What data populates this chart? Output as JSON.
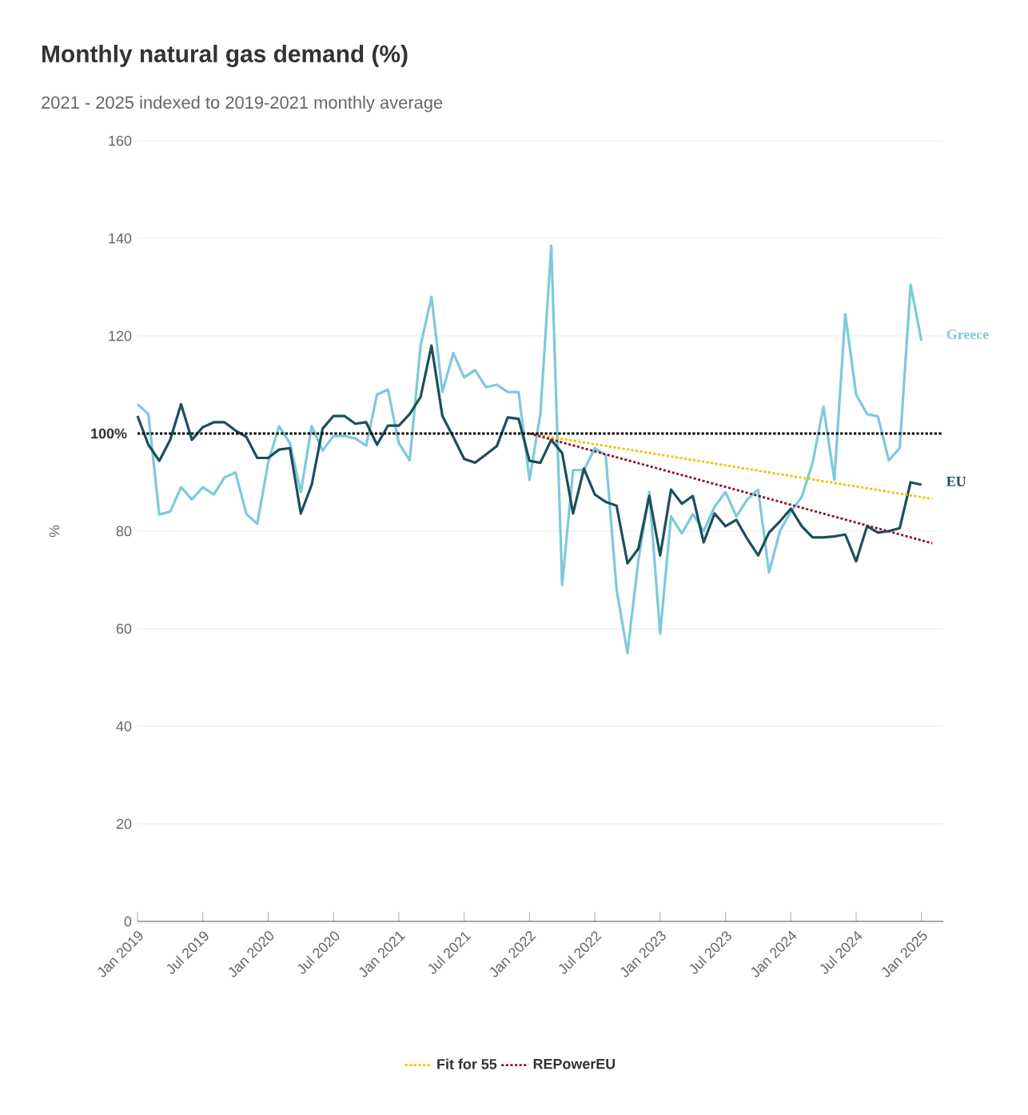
{
  "chart_data": {
    "type": "line",
    "title": "Monthly natural gas demand (%)",
    "subtitle": "2021 - 2025 indexed to 2019-2021 monthly average",
    "ylabel": "%",
    "x": [
      "2019-01",
      "2019-02",
      "2019-03",
      "2019-04",
      "2019-05",
      "2019-06",
      "2019-07",
      "2019-08",
      "2019-09",
      "2019-10",
      "2019-11",
      "2019-12",
      "2020-01",
      "2020-02",
      "2020-03",
      "2020-04",
      "2020-05",
      "2020-06",
      "2020-07",
      "2020-08",
      "2020-09",
      "2020-10",
      "2020-11",
      "2020-12",
      "2021-01",
      "2021-02",
      "2021-03",
      "2021-04",
      "2021-05",
      "2021-06",
      "2021-07",
      "2021-08",
      "2021-09",
      "2021-10",
      "2021-11",
      "2021-12",
      "2022-01",
      "2022-02",
      "2022-03",
      "2022-04",
      "2022-05",
      "2022-06",
      "2022-07",
      "2022-08",
      "2022-09",
      "2022-10",
      "2022-11",
      "2022-12",
      "2023-01",
      "2023-02",
      "2023-03",
      "2023-04",
      "2023-05",
      "2023-06",
      "2023-07",
      "2023-08",
      "2023-09",
      "2023-10",
      "2023-11",
      "2023-12",
      "2024-01",
      "2024-02",
      "2024-03",
      "2024-04",
      "2024-05",
      "2024-06",
      "2024-07",
      "2024-08",
      "2024-09",
      "2024-10",
      "2024-11",
      "2024-12",
      "2025-01"
    ],
    "series": [
      {
        "name": "Greece",
        "color": "#7ccadb",
        "line_style": "solid",
        "values": [
          106,
          104,
          83.4,
          84,
          89,
          86.5,
          89,
          87.5,
          91,
          92,
          83.5,
          81.5,
          94,
          101.5,
          98,
          88,
          101.5,
          96.5,
          99.5,
          99.5,
          99,
          97.5,
          108,
          109,
          98,
          94.5,
          118,
          128,
          108.5,
          116.5,
          111.5,
          113,
          109.5,
          110,
          108.5,
          108.5,
          90.5,
          104,
          138.5,
          69,
          92.5,
          92.5,
          97,
          95.5,
          68,
          55,
          74,
          88,
          59,
          83,
          79.5,
          83.5,
          80,
          85,
          88,
          83,
          86.5,
          88.5,
          71.5,
          80,
          84,
          87,
          94,
          105.5,
          90.5,
          124.5,
          108,
          104,
          103.5,
          94.5,
          97,
          130.5,
          119
        ]
      },
      {
        "name": "EU",
        "color": "#1b4f5c",
        "line_style": "solid",
        "values": [
          103.6,
          97.7,
          94.4,
          98.7,
          106,
          98.7,
          101.3,
          102.3,
          102.3,
          100.6,
          99.3,
          95,
          95,
          96.7,
          97,
          83.6,
          89.5,
          101,
          103.6,
          103.6,
          102,
          102.3,
          97.7,
          101.6,
          101.6,
          104,
          107.5,
          118,
          103.6,
          99.3,
          94.8,
          94,
          95.7,
          97.4,
          103.3,
          103,
          94.4,
          94,
          98.7,
          96,
          83.6,
          92.8,
          87.5,
          86,
          85.2,
          73.4,
          76.4,
          87.2,
          75,
          88.5,
          85.6,
          87.2,
          77.7,
          83.6,
          81,
          82.3,
          78.4,
          75,
          79.7,
          82,
          84.6,
          81,
          78.7,
          78.7,
          78.9,
          79.3,
          73.8,
          81,
          79.7,
          80,
          80.6,
          90,
          89.5
        ]
      },
      {
        "name": "Fit for 55",
        "color": "#f2c200",
        "line_style": "dotted",
        "x": [
          "2022-01",
          "2025-02"
        ],
        "values": [
          100,
          86.6
        ]
      },
      {
        "name": "REPowerEU",
        "color": "#8b1a3a",
        "line_style": "dotted",
        "x": [
          "2022-01",
          "2025-02"
        ],
        "values": [
          100,
          77.5
        ]
      }
    ],
    "xlim": [
      "2019-01",
      "2025-03"
    ],
    "xticks": [
      {
        "value": "2019-01",
        "label": "Jan 2019"
      },
      {
        "value": "2019-07",
        "label": "Jul 2019"
      },
      {
        "value": "2020-01",
        "label": "Jan 2020"
      },
      {
        "value": "2020-07",
        "label": "Jul 2020"
      },
      {
        "value": "2021-01",
        "label": "Jan 2021"
      },
      {
        "value": "2021-07",
        "label": "Jul 2021"
      },
      {
        "value": "2022-01",
        "label": "Jan 2022"
      },
      {
        "value": "2022-07",
        "label": "Jul 2022"
      },
      {
        "value": "2023-01",
        "label": "Jan 2023"
      },
      {
        "value": "2023-07",
        "label": "Jul 2023"
      },
      {
        "value": "2024-01",
        "label": "Jan 2024"
      },
      {
        "value": "2024-07",
        "label": "Jul 2024"
      },
      {
        "value": "2025-01",
        "label": "Jan 2025"
      }
    ],
    "ylim": [
      0,
      160
    ],
    "yticks": [
      0,
      20,
      40,
      60,
      80,
      {
        "value": 100,
        "label": null
      },
      120,
      140,
      160
    ],
    "ref_lines": [
      {
        "axis": "y",
        "value": 100,
        "label": "100%",
        "color": "#000000",
        "line_style": "dotted"
      }
    ],
    "grid": "y",
    "legend": "bottom",
    "marker": "none"
  }
}
